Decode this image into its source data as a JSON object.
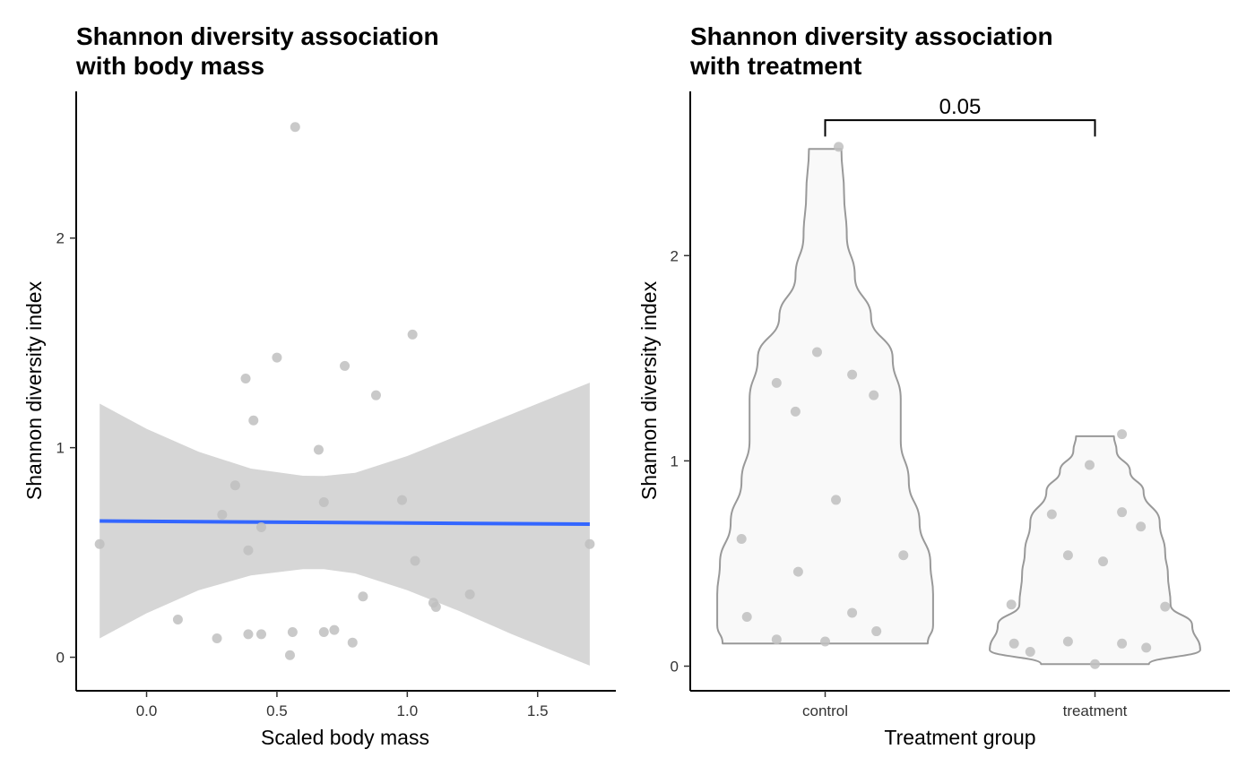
{
  "chart_data": [
    {
      "type": "scatter",
      "title": "Shannon diversity association\nwith body mass",
      "xlabel": "Scaled body mass",
      "ylabel": "Shannon diversity index",
      "xlim": [
        -0.27,
        1.8
      ],
      "ylim": [
        -0.16,
        2.7
      ],
      "xticks": [
        "0.0",
        "0.5",
        "1.0",
        "1.5"
      ],
      "xtick_values": [
        0.0,
        0.5,
        1.0,
        1.5
      ],
      "yticks": [
        "0",
        "1",
        "2"
      ],
      "ytick_values": [
        0,
        1,
        2
      ],
      "points": [
        {
          "x": -0.18,
          "y": 0.54
        },
        {
          "x": 0.12,
          "y": 0.18
        },
        {
          "x": 0.27,
          "y": 0.09
        },
        {
          "x": 0.29,
          "y": 0.68
        },
        {
          "x": 0.34,
          "y": 0.82
        },
        {
          "x": 0.38,
          "y": 1.33
        },
        {
          "x": 0.39,
          "y": 0.11
        },
        {
          "x": 0.39,
          "y": 0.51
        },
        {
          "x": 0.41,
          "y": 1.13
        },
        {
          "x": 0.44,
          "y": 0.62
        },
        {
          "x": 0.44,
          "y": 0.11
        },
        {
          "x": 0.5,
          "y": 1.43
        },
        {
          "x": 0.55,
          "y": 0.01
        },
        {
          "x": 0.56,
          "y": 0.12
        },
        {
          "x": 0.57,
          "y": 2.53
        },
        {
          "x": 0.66,
          "y": 0.99
        },
        {
          "x": 0.68,
          "y": 0.74
        },
        {
          "x": 0.68,
          "y": 0.12
        },
        {
          "x": 0.72,
          "y": 0.13
        },
        {
          "x": 0.76,
          "y": 1.39
        },
        {
          "x": 0.79,
          "y": 0.07
        },
        {
          "x": 0.83,
          "y": 0.29
        },
        {
          "x": 0.88,
          "y": 1.25
        },
        {
          "x": 0.98,
          "y": 0.75
        },
        {
          "x": 1.02,
          "y": 1.54
        },
        {
          "x": 1.03,
          "y": 0.46
        },
        {
          "x": 1.1,
          "y": 0.26
        },
        {
          "x": 1.11,
          "y": 0.24
        },
        {
          "x": 1.24,
          "y": 0.3
        },
        {
          "x": 1.7,
          "y": 0.54
        }
      ],
      "fit_line": {
        "x": [
          -0.18,
          1.7
        ],
        "y": [
          0.65,
          0.635
        ]
      },
      "confidence_band": {
        "x": [
          -0.18,
          0.0,
          0.2,
          0.4,
          0.6,
          0.68,
          0.8,
          1.0,
          1.2,
          1.4,
          1.6,
          1.7
        ],
        "upper": [
          1.21,
          1.09,
          0.98,
          0.9,
          0.866,
          0.865,
          0.88,
          0.96,
          1.06,
          1.16,
          1.26,
          1.31
        ],
        "lower": [
          0.09,
          0.21,
          0.32,
          0.39,
          0.42,
          0.42,
          0.4,
          0.32,
          0.22,
          0.11,
          0.01,
          -0.04
        ]
      },
      "colors": {
        "points": "#bfbfbf",
        "line": "#3366ff",
        "band": "#d6d6d6"
      }
    },
    {
      "type": "violin",
      "title": "Shannon diversity association\nwith treatment",
      "xlabel": "Treatment group",
      "ylabel": "Shannon diversity index",
      "categories": [
        "control",
        "treatment"
      ],
      "ylim": [
        -0.12,
        2.8
      ],
      "yticks": [
        "0",
        "1",
        "2"
      ],
      "ytick_values": [
        0,
        1,
        2
      ],
      "violins": [
        {
          "category": "control",
          "y": [
            0.11,
            0.2,
            0.35,
            0.5,
            0.7,
            0.9,
            1.1,
            1.3,
            1.5,
            1.7,
            1.9,
            2.1,
            2.3,
            2.52
          ],
          "half_width": [
            0.38,
            0.4,
            0.4,
            0.39,
            0.35,
            0.31,
            0.28,
            0.28,
            0.25,
            0.17,
            0.11,
            0.08,
            0.07,
            0.06
          ]
        },
        {
          "category": "treatment",
          "y": [
            0.01,
            0.08,
            0.2,
            0.3,
            0.45,
            0.55,
            0.7,
            0.85,
            0.95,
            1.05,
            1.12
          ],
          "half_width": [
            0.2,
            0.39,
            0.36,
            0.28,
            0.27,
            0.26,
            0.24,
            0.18,
            0.13,
            0.08,
            0.07
          ]
        }
      ],
      "points": [
        {
          "category": "control",
          "x_offset": -0.31,
          "y": 0.62
        },
        {
          "category": "control",
          "x_offset": -0.29,
          "y": 0.24
        },
        {
          "category": "control",
          "x_offset": -0.18,
          "y": 1.38
        },
        {
          "category": "control",
          "x_offset": -0.18,
          "y": 0.13
        },
        {
          "category": "control",
          "x_offset": -0.11,
          "y": 1.24
        },
        {
          "category": "control",
          "x_offset": -0.1,
          "y": 0.46
        },
        {
          "category": "control",
          "x_offset": -0.03,
          "y": 1.53
        },
        {
          "category": "control",
          "x_offset": 0.0,
          "y": 0.12
        },
        {
          "category": "control",
          "x_offset": 0.04,
          "y": 0.81
        },
        {
          "category": "control",
          "x_offset": 0.05,
          "y": 2.53
        },
        {
          "category": "control",
          "x_offset": 0.1,
          "y": 1.42
        },
        {
          "category": "control",
          "x_offset": 0.1,
          "y": 0.26
        },
        {
          "category": "control",
          "x_offset": 0.18,
          "y": 1.32
        },
        {
          "category": "control",
          "x_offset": 0.19,
          "y": 0.17
        },
        {
          "category": "control",
          "x_offset": 0.29,
          "y": 0.54
        },
        {
          "category": "treatment",
          "x_offset": -0.31,
          "y": 0.3
        },
        {
          "category": "treatment",
          "x_offset": -0.3,
          "y": 0.11
        },
        {
          "category": "treatment",
          "x_offset": -0.24,
          "y": 0.07
        },
        {
          "category": "treatment",
          "x_offset": -0.16,
          "y": 0.74
        },
        {
          "category": "treatment",
          "x_offset": -0.1,
          "y": 0.54
        },
        {
          "category": "treatment",
          "x_offset": -0.1,
          "y": 0.12
        },
        {
          "category": "treatment",
          "x_offset": 0.0,
          "y": 0.01
        },
        {
          "category": "treatment",
          "x_offset": -0.02,
          "y": 0.98
        },
        {
          "category": "treatment",
          "x_offset": 0.03,
          "y": 0.51
        },
        {
          "category": "treatment",
          "x_offset": 0.1,
          "y": 0.75
        },
        {
          "category": "treatment",
          "x_offset": 0.1,
          "y": 0.11
        },
        {
          "category": "treatment",
          "x_offset": 0.1,
          "y": 1.13
        },
        {
          "category": "treatment",
          "x_offset": 0.17,
          "y": 0.68
        },
        {
          "category": "treatment",
          "x_offset": 0.19,
          "y": 0.09
        },
        {
          "category": "treatment",
          "x_offset": 0.26,
          "y": 0.29
        }
      ],
      "significance": {
        "label": "0.05",
        "y": 2.66,
        "tick_drop": 0.08
      },
      "colors": {
        "violin_fill": "#f9f9f9",
        "violin_stroke": "#999999",
        "points": "#bfbfbf"
      }
    }
  ]
}
